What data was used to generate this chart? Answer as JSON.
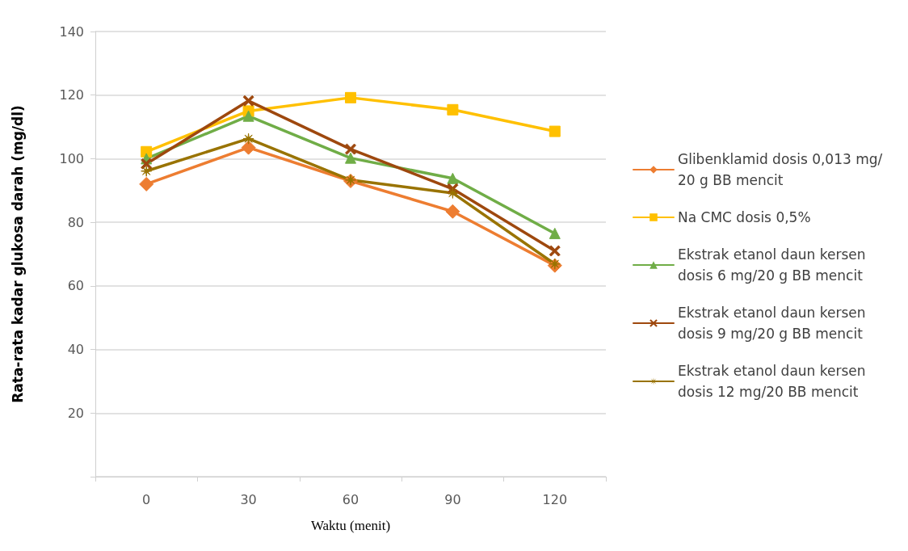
{
  "chart_data": {
    "type": "line",
    "xlabel": "Waktu (menit)",
    "ylabel": "Rata-rata kadar glukosa darah (mg/dl)",
    "categories": [
      "0",
      "30",
      "60",
      "90",
      "120"
    ],
    "ylim": [
      0,
      140
    ],
    "yticks": [
      {
        "value": 0,
        "label": null
      },
      20,
      40,
      60,
      80,
      100,
      120,
      140
    ],
    "grid": "y",
    "legend": "right",
    "line_style": "solid",
    "series": [
      {
        "name": "Glibenklamid dosis 0,013 mg/20 g BB mencit",
        "color": "#ed7d31",
        "marker": "diamond",
        "values": [
          92,
          103.5,
          93,
          83.4,
          66.4
        ]
      },
      {
        "name": "Na CMC dosis 0,5%",
        "color": "#ffc000",
        "marker": "square",
        "values": [
          102.2,
          115,
          119.2,
          115.4,
          108.6
        ]
      },
      {
        "name": "Ekstrak etanol daun kersen dosis 6 mg/20 g BB mencit",
        "color": "#70ad47",
        "marker": "triangle",
        "values": [
          100,
          113.4,
          100.2,
          93.8,
          76.5
        ]
      },
      {
        "name": "Ekstrak etanol daun kersen dosis 9 mg/20 g BB mencit",
        "color": "#9e480e",
        "marker": "cross",
        "values": [
          98.4,
          118.2,
          103,
          90.5,
          71
        ]
      },
      {
        "name": "Ekstrak etanol daun kersen dosis 12 mg/20 BB mencit",
        "color": "#997300",
        "marker": "star",
        "values": [
          96.1,
          106.3,
          93.3,
          89.2,
          66.9
        ]
      }
    ]
  }
}
